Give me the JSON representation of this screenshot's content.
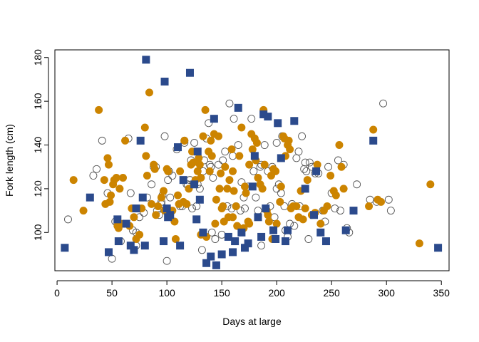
{
  "chart_data": {
    "type": "scatter",
    "title": "",
    "xlabel": "Days at large",
    "ylabel": "Fork length (cm)",
    "xlim": [
      -2,
      357
    ],
    "ylim": [
      82.5,
      183.5
    ],
    "x_ticks": [
      0,
      50,
      100,
      150,
      200,
      250,
      300,
      350
    ],
    "y_ticks": [
      100,
      120,
      140,
      160,
      180
    ],
    "grid": false,
    "legend": "none",
    "colors": {
      "open": "#555555",
      "orange": "#cc8400",
      "blue": "#2b4a8c"
    },
    "series": [
      {
        "marker": "open-circle",
        "points": [
          [
            10,
            106
          ],
          [
            33,
            126
          ],
          [
            36,
            129
          ],
          [
            41,
            142
          ],
          [
            46,
            118
          ],
          [
            50,
            88
          ],
          [
            53,
            105
          ],
          [
            55,
            104
          ],
          [
            58,
            96
          ],
          [
            65,
            143
          ],
          [
            67,
            118
          ],
          [
            69,
            101
          ],
          [
            72,
            100
          ],
          [
            72,
            94
          ],
          [
            75,
            107
          ],
          [
            79,
            109
          ],
          [
            82,
            116
          ],
          [
            86,
            122
          ],
          [
            90,
            130
          ],
          [
            91,
            110
          ],
          [
            93,
            108
          ],
          [
            95,
            114
          ],
          [
            96,
            117
          ],
          [
            98,
            144
          ],
          [
            100,
            87
          ],
          [
            101,
            124
          ],
          [
            102,
            128
          ],
          [
            103,
            116
          ],
          [
            105,
            126
          ],
          [
            109,
            138
          ],
          [
            112,
            112
          ],
          [
            114,
            112
          ],
          [
            116,
            142
          ],
          [
            118,
            122
          ],
          [
            119,
            122
          ],
          [
            121,
            124
          ],
          [
            122,
            133
          ],
          [
            123,
            111
          ],
          [
            125,
            141
          ],
          [
            127,
            112
          ],
          [
            128,
            122
          ],
          [
            130,
            120
          ],
          [
            133,
            128
          ],
          [
            134,
            133
          ],
          [
            136,
            143
          ],
          [
            138,
            150
          ],
          [
            139,
            131
          ],
          [
            140,
            130
          ],
          [
            141,
            100
          ],
          [
            144,
            97
          ],
          [
            147,
            131
          ],
          [
            151,
            133
          ],
          [
            153,
            137
          ],
          [
            155,
            112
          ],
          [
            157,
            159
          ],
          [
            159,
            111
          ],
          [
            161,
            152
          ],
          [
            163,
            112
          ],
          [
            165,
            140
          ],
          [
            167,
            110
          ],
          [
            168,
            123
          ],
          [
            170,
            116
          ],
          [
            171,
            111
          ],
          [
            174,
            121
          ],
          [
            177,
            152
          ],
          [
            179,
            128
          ],
          [
            181,
            116
          ],
          [
            183,
            110
          ],
          [
            185,
            130
          ],
          [
            186,
            131
          ],
          [
            189,
            140
          ],
          [
            192,
            128
          ],
          [
            194,
            112
          ],
          [
            196,
            130
          ],
          [
            198,
            107
          ],
          [
            200,
            120
          ],
          [
            202,
            122
          ],
          [
            204,
            118
          ],
          [
            205,
            144
          ],
          [
            207,
            112
          ],
          [
            208,
            101
          ],
          [
            210,
            98
          ],
          [
            212,
            104
          ],
          [
            214,
            113
          ],
          [
            216,
            103
          ],
          [
            218,
            134
          ],
          [
            220,
            137
          ],
          [
            221,
            112
          ],
          [
            223,
            144
          ],
          [
            225,
            129
          ],
          [
            226,
            132
          ],
          [
            227,
            128
          ],
          [
            230,
            132
          ],
          [
            232,
            130
          ],
          [
            235,
            127
          ],
          [
            238,
            127
          ],
          [
            242,
            110
          ],
          [
            244,
            105
          ],
          [
            247,
            130
          ],
          [
            250,
            118
          ],
          [
            253,
            111
          ],
          [
            256,
            133
          ],
          [
            258,
            110
          ],
          [
            261,
            131
          ],
          [
            264,
            102
          ],
          [
            266,
            100
          ],
          [
            273,
            122
          ],
          [
            285,
            115
          ],
          [
            291,
            114
          ],
          [
            297,
            159
          ],
          [
            302,
            115
          ],
          [
            304,
            110
          ],
          [
            132,
            92
          ],
          [
            150,
            99
          ],
          [
            186,
            94
          ],
          [
            95,
            113
          ],
          [
            142,
            125
          ],
          [
            160,
            135
          ],
          [
            116,
            141
          ],
          [
            88,
            130
          ],
          [
            200,
            141
          ],
          [
            229,
            97
          ]
        ]
      },
      {
        "marker": "filled-circle",
        "points": [
          [
            15,
            124
          ],
          [
            24,
            110
          ],
          [
            38,
            156
          ],
          [
            43,
            124
          ],
          [
            44,
            113
          ],
          [
            46,
            134
          ],
          [
            47,
            131
          ],
          [
            48,
            114
          ],
          [
            49,
            117
          ],
          [
            51,
            122
          ],
          [
            52,
            124
          ],
          [
            54,
            125
          ],
          [
            55,
            103
          ],
          [
            56,
            102
          ],
          [
            57,
            120
          ],
          [
            58,
            104
          ],
          [
            60,
            125
          ],
          [
            62,
            142
          ],
          [
            66,
            103
          ],
          [
            68,
            111
          ],
          [
            70,
            107
          ],
          [
            72,
            97
          ],
          [
            75,
            99
          ],
          [
            77,
            111
          ],
          [
            80,
            148
          ],
          [
            81,
            135
          ],
          [
            82,
            126
          ],
          [
            84,
            164
          ],
          [
            86,
            113
          ],
          [
            88,
            131
          ],
          [
            89,
            129
          ],
          [
            90,
            108
          ],
          [
            92,
            112
          ],
          [
            95,
            116
          ],
          [
            97,
            119
          ],
          [
            98,
            110
          ],
          [
            100,
            129
          ],
          [
            101,
            128
          ],
          [
            103,
            110
          ],
          [
            105,
            110
          ],
          [
            107,
            105
          ],
          [
            108,
            97
          ],
          [
            110,
            117
          ],
          [
            111,
            113
          ],
          [
            112,
            128
          ],
          [
            115,
            114
          ],
          [
            116,
            142
          ],
          [
            118,
            113
          ],
          [
            120,
            120
          ],
          [
            122,
            131
          ],
          [
            123,
            137
          ],
          [
            124,
            132
          ],
          [
            126,
            124
          ],
          [
            128,
            128
          ],
          [
            129,
            134
          ],
          [
            130,
            131
          ],
          [
            131,
            125
          ],
          [
            131,
            99
          ],
          [
            133,
            144
          ],
          [
            135,
            156
          ],
          [
            136,
            98
          ],
          [
            138,
            137
          ],
          [
            139,
            128
          ],
          [
            140,
            142
          ],
          [
            141,
            135
          ],
          [
            143,
            145
          ],
          [
            144,
            104
          ],
          [
            145,
            115
          ],
          [
            147,
            144
          ],
          [
            148,
            120
          ],
          [
            149,
            127
          ],
          [
            150,
            111
          ],
          [
            151,
            112
          ],
          [
            152,
            105
          ],
          [
            153,
            130
          ],
          [
            155,
            120
          ],
          [
            156,
            107
          ],
          [
            157,
            124
          ],
          [
            159,
            138
          ],
          [
            160,
            128
          ],
          [
            161,
            119
          ],
          [
            163,
            112
          ],
          [
            164,
            103
          ],
          [
            166,
            135
          ],
          [
            168,
            148
          ],
          [
            170,
            102
          ],
          [
            171,
            121
          ],
          [
            172,
            118
          ],
          [
            174,
            105
          ],
          [
            175,
            104
          ],
          [
            177,
            145
          ],
          [
            178,
            138
          ],
          [
            180,
            143
          ],
          [
            181,
            133
          ],
          [
            182,
            141
          ],
          [
            183,
            125
          ],
          [
            185,
            122
          ],
          [
            187,
            120
          ],
          [
            188,
            156
          ],
          [
            189,
            131
          ],
          [
            191,
            110
          ],
          [
            192,
            108
          ],
          [
            193,
            105
          ],
          [
            195,
            126
          ],
          [
            196,
            97
          ],
          [
            197,
            129
          ],
          [
            199,
            128
          ],
          [
            200,
            104
          ],
          [
            203,
            114
          ],
          [
            204,
            121
          ],
          [
            206,
            144
          ],
          [
            207,
            143
          ],
          [
            208,
            135
          ],
          [
            210,
            140
          ],
          [
            211,
            142
          ],
          [
            212,
            138
          ],
          [
            213,
            111
          ],
          [
            215,
            112
          ],
          [
            218,
            112
          ],
          [
            220,
            107
          ],
          [
            222,
            119
          ],
          [
            224,
            106
          ],
          [
            226,
            111
          ],
          [
            228,
            124
          ],
          [
            232,
            108
          ],
          [
            235,
            109
          ],
          [
            237,
            131
          ],
          [
            240,
            104
          ],
          [
            243,
            110
          ],
          [
            246,
            112
          ],
          [
            249,
            126
          ],
          [
            252,
            119
          ],
          [
            254,
            117
          ],
          [
            257,
            140
          ],
          [
            259,
            130
          ],
          [
            261,
            120
          ],
          [
            284,
            112
          ],
          [
            288,
            147
          ],
          [
            292,
            115
          ],
          [
            295,
            114
          ],
          [
            330,
            95
          ],
          [
            340,
            122
          ],
          [
            175,
            131
          ],
          [
            160,
            107
          ]
        ]
      },
      {
        "marker": "filled-square",
        "points": [
          [
            7,
            93
          ],
          [
            30,
            116
          ],
          [
            47,
            91
          ],
          [
            55,
            106
          ],
          [
            56,
            96
          ],
          [
            63,
            104
          ],
          [
            67,
            94
          ],
          [
            70,
            92
          ],
          [
            72,
            111
          ],
          [
            76,
            142
          ],
          [
            78,
            116
          ],
          [
            80,
            94
          ],
          [
            81,
            179
          ],
          [
            97,
            96
          ],
          [
            98,
            169
          ],
          [
            100,
            111
          ],
          [
            101,
            107
          ],
          [
            103,
            108
          ],
          [
            110,
            139
          ],
          [
            112,
            94
          ],
          [
            115,
            124
          ],
          [
            121,
            173
          ],
          [
            125,
            122
          ],
          [
            127,
            106
          ],
          [
            128,
            137
          ],
          [
            130,
            115
          ],
          [
            133,
            100
          ],
          [
            136,
            86
          ],
          [
            140,
            89
          ],
          [
            143,
            152
          ],
          [
            145,
            85
          ],
          [
            150,
            90
          ],
          [
            156,
            98
          ],
          [
            160,
            91
          ],
          [
            162,
            96
          ],
          [
            165,
            157
          ],
          [
            168,
            100
          ],
          [
            171,
            93
          ],
          [
            174,
            95
          ],
          [
            178,
            121
          ],
          [
            180,
            135
          ],
          [
            183,
            107
          ],
          [
            186,
            98
          ],
          [
            188,
            154
          ],
          [
            190,
            111
          ],
          [
            192,
            153
          ],
          [
            197,
            101
          ],
          [
            201,
            150
          ],
          [
            204,
            134
          ],
          [
            208,
            96
          ],
          [
            210,
            101
          ],
          [
            216,
            151
          ],
          [
            234,
            108
          ],
          [
            236,
            128
          ],
          [
            240,
            100
          ],
          [
            245,
            96
          ],
          [
            263,
            101
          ],
          [
            270,
            110
          ],
          [
            288,
            142
          ],
          [
            347,
            93
          ],
          [
            199,
            97
          ],
          [
            226,
            120
          ]
        ]
      }
    ]
  }
}
